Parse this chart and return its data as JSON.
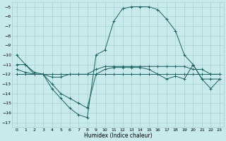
{
  "xlabel": "Humidex (Indice chaleur)",
  "background_color": "#c8eaea",
  "grid_color": "#a8d0ce",
  "line_color": "#1a6060",
  "xlim": [
    -0.5,
    23.5
  ],
  "ylim": [
    -17.5,
    -4.5
  ],
  "xticks": [
    0,
    1,
    2,
    3,
    4,
    5,
    6,
    7,
    8,
    9,
    10,
    11,
    12,
    13,
    14,
    15,
    16,
    17,
    18,
    19,
    20,
    21,
    22,
    23
  ],
  "yticks": [
    -5,
    -6,
    -7,
    -8,
    -9,
    -10,
    -11,
    -12,
    -13,
    -14,
    -15,
    -16,
    -17
  ],
  "curve1_x": [
    0,
    1,
    2,
    3,
    4,
    5,
    6,
    7,
    8,
    9,
    10,
    11,
    12,
    13,
    14,
    15,
    16,
    17,
    18,
    19,
    20,
    21,
    22,
    23
  ],
  "curve1_y": [
    -10,
    -11,
    -12,
    -12,
    -13.5,
    -14.5,
    -15.5,
    -16.2,
    -16.5,
    -10,
    -9.5,
    -6.5,
    -5.2,
    -5,
    -5,
    -5,
    -5.3,
    -6.3,
    -7.5,
    -10,
    -11,
    -12.5,
    -12.5,
    -12.5
  ],
  "curve2_x": [
    0,
    1,
    2,
    3,
    4,
    5,
    6,
    7,
    8,
    9,
    10,
    11,
    12,
    13,
    14,
    15,
    16,
    17,
    18,
    19,
    20,
    21,
    22,
    23
  ],
  "curve2_y": [
    -11,
    -11,
    -11.8,
    -12,
    -13,
    -14,
    -14.5,
    -15,
    -15.5,
    -12,
    -11.5,
    -11.3,
    -11.3,
    -11.3,
    -11.3,
    -11.5,
    -12,
    -12.5,
    -12.2,
    -12.5,
    -11,
    -12.5,
    -13.5,
    -12.5
  ],
  "curve3_x": [
    0,
    1,
    2,
    3,
    4,
    5,
    6,
    7,
    8,
    9,
    10,
    11,
    12,
    13,
    14,
    15,
    16,
    17,
    18,
    19,
    20,
    21,
    22,
    23
  ],
  "curve3_y": [
    -11.5,
    -11.8,
    -12,
    -12,
    -12.3,
    -12.3,
    -12,
    -12,
    -12,
    -11.5,
    -11.2,
    -11.2,
    -11.2,
    -11.2,
    -11.2,
    -11.2,
    -11.2,
    -11.2,
    -11.2,
    -11.2,
    -11.5,
    -11.5,
    -12,
    -12
  ],
  "curve4_x": [
    0,
    1,
    2,
    3,
    4,
    5,
    6,
    7,
    8,
    9,
    10,
    11,
    12,
    13,
    14,
    15,
    16,
    17,
    18,
    19,
    20,
    21,
    22,
    23
  ],
  "curve4_y": [
    -12,
    -12,
    -12,
    -12,
    -12,
    -12,
    -12,
    -12,
    -12,
    -12,
    -12,
    -12,
    -12,
    -12,
    -12,
    -12,
    -12,
    -12,
    -12,
    -12,
    -12,
    -12,
    -12,
    -12
  ]
}
